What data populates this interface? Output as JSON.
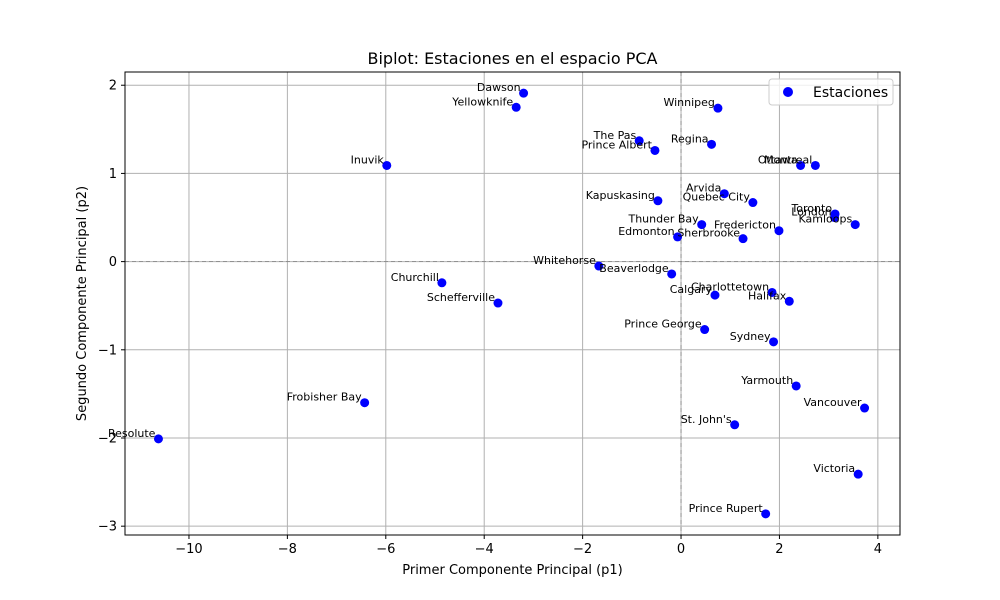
{
  "chart_data": {
    "type": "scatter",
    "title": "Biplot: Estaciones en el espacio PCA",
    "xlabel": "Primer Componente Principal (p1)",
    "ylabel": "Segundo Componente Principal (p2)",
    "xlim": [
      -11.3,
      4.45
    ],
    "ylim": [
      -3.1,
      2.15
    ],
    "xticks": [
      -10,
      -8,
      -6,
      -4,
      -2,
      0,
      2,
      4
    ],
    "yticks": [
      -3,
      -2,
      -1,
      0,
      1,
      2
    ],
    "xtick_labels": [
      "−10",
      "−8",
      "−6",
      "−4",
      "−2",
      "0",
      "2",
      "4"
    ],
    "ytick_labels": [
      "−3",
      "−2",
      "−1",
      "0",
      "1",
      "2"
    ],
    "grid": true,
    "reference_lines": {
      "x": 0,
      "y": 0,
      "style": "dashed"
    },
    "legend": {
      "placement": "top-right",
      "entries": [
        "Estaciones"
      ]
    },
    "colors": {
      "points": "#0000ff",
      "grid": "#b0b0b0",
      "reference": "#808080"
    },
    "series": [
      {
        "name": "Estaciones",
        "points": [
          {
            "label": "Dawson",
            "x": -3.2,
            "y": 1.91
          },
          {
            "label": "Yellowknife",
            "x": -3.35,
            "y": 1.75
          },
          {
            "label": "Winnipeg",
            "x": 0.75,
            "y": 1.74
          },
          {
            "label": "The Pas",
            "x": -0.85,
            "y": 1.37
          },
          {
            "label": "Prince Albert",
            "x": -0.53,
            "y": 1.26
          },
          {
            "label": "Regina",
            "x": 0.62,
            "y": 1.33
          },
          {
            "label": "Inuvik",
            "x": -5.98,
            "y": 1.09
          },
          {
            "label": "Ottawa",
            "x": 2.43,
            "y": 1.09
          },
          {
            "label": "Montreal",
            "x": 2.73,
            "y": 1.09
          },
          {
            "label": "Arvida",
            "x": 0.88,
            "y": 0.77
          },
          {
            "label": "Kapuskasing",
            "x": -0.47,
            "y": 0.69
          },
          {
            "label": "Quebec City",
            "x": 1.46,
            "y": 0.67
          },
          {
            "label": "Toronto",
            "x": 3.13,
            "y": 0.54
          },
          {
            "label": "London",
            "x": 3.12,
            "y": 0.5
          },
          {
            "label": "Kamloops",
            "x": 3.54,
            "y": 0.42
          },
          {
            "label": "Thunder Bay",
            "x": 0.42,
            "y": 0.42
          },
          {
            "label": "Fredericton",
            "x": 1.99,
            "y": 0.35
          },
          {
            "label": "Edmonton",
            "x": -0.07,
            "y": 0.28
          },
          {
            "label": "Sherbrooke",
            "x": 1.26,
            "y": 0.26
          },
          {
            "label": "Whitehorse",
            "x": -1.67,
            "y": -0.05
          },
          {
            "label": "Beaverlodge",
            "x": -0.19,
            "y": -0.14
          },
          {
            "label": "Churchill",
            "x": -4.86,
            "y": -0.24
          },
          {
            "label": "Charlottetown",
            "x": 1.85,
            "y": -0.35
          },
          {
            "label": "Calgary",
            "x": 0.69,
            "y": -0.38
          },
          {
            "label": "Halifax",
            "x": 2.2,
            "y": -0.45
          },
          {
            "label": "Schefferville",
            "x": -3.72,
            "y": -0.47
          },
          {
            "label": "Prince George",
            "x": 0.48,
            "y": -0.77
          },
          {
            "label": "Sydney",
            "x": 1.88,
            "y": -0.91
          },
          {
            "label": "Yarmouth",
            "x": 2.34,
            "y": -1.41
          },
          {
            "label": "Frobisher Bay",
            "x": -6.43,
            "y": -1.6
          },
          {
            "label": "Vancouver",
            "x": 3.73,
            "y": -1.66
          },
          {
            "label": "St. John's",
            "x": 1.09,
            "y": -1.85
          },
          {
            "label": "Resolute",
            "x": -10.62,
            "y": -2.01
          },
          {
            "label": "Victoria",
            "x": 3.6,
            "y": -2.41
          },
          {
            "label": "Prince Rupert",
            "x": 1.72,
            "y": -2.86
          }
        ]
      }
    ]
  }
}
